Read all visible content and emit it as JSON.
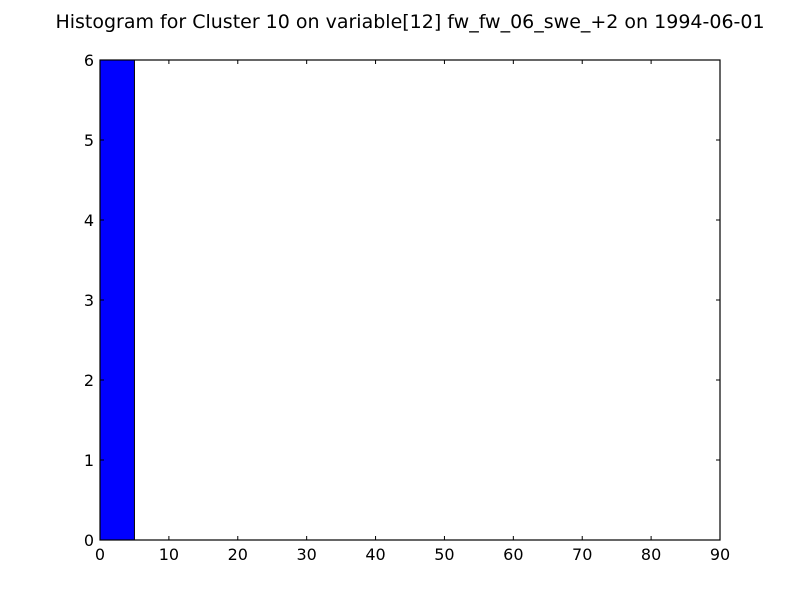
{
  "chart_data": {
    "type": "bar",
    "title": "Histogram for Cluster 10 on variable[12] fw_fw_06_swe_+2 on 1994-06-01",
    "xlabel": "",
    "ylabel": "",
    "xlim": [
      0,
      90
    ],
    "ylim": [
      0,
      6
    ],
    "xticks": [
      "0",
      "10",
      "20",
      "30",
      "40",
      "50",
      "60",
      "70",
      "80",
      "90"
    ],
    "yticks": [
      "0",
      "1",
      "2",
      "3",
      "4",
      "5",
      "6"
    ],
    "bins": [
      {
        "x0": 0,
        "x1": 5,
        "count": 6
      }
    ],
    "bar_color": "#0000ff",
    "grid": false
  }
}
